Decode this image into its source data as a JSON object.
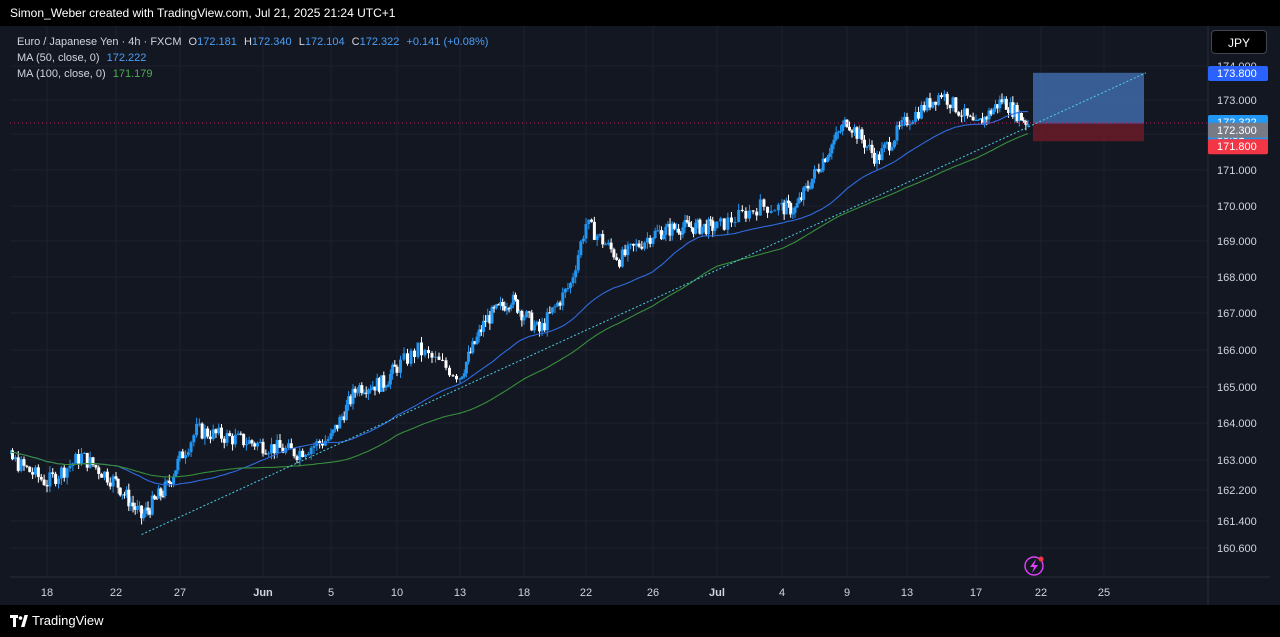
{
  "header": {
    "attribution": "Simon_Weber created with TradingView.com, Jul 21, 2025 21:24 UTC+1"
  },
  "legend": {
    "symbol": "Euro / Japanese Yen · 4h · FXCM",
    "o_label": "O",
    "o_value": "172.181",
    "h_label": "H",
    "h_value": "172.340",
    "l_label": "L",
    "l_value": "172.104",
    "c_label": "C",
    "c_value": "172.322",
    "change": "+0.141 (+0.08%)",
    "ma50_label": "MA (50, close, 0)",
    "ma50_value": "172.222",
    "ma100_label": "MA (100, close, 0)",
    "ma100_value": "171.179"
  },
  "currency_button": "JPY",
  "footer": {
    "brand": "TradingView"
  },
  "colors": {
    "background": "#131722",
    "up": "#2196f3",
    "down": "#ffffff",
    "ma50": "#2962ff",
    "ma100": "#388e3c",
    "trendline": "#4dd0e1",
    "target_zone": "#3f6aa8",
    "stop_zone": "#6a1b28"
  },
  "chart_data": {
    "type": "candlestick",
    "y_axis_ticks": [
      "160.600",
      "161.400",
      "162.200",
      "163.000",
      "164.000",
      "165.000",
      "166.000",
      "167.000",
      "168.000",
      "169.000",
      "170.000",
      "171.000",
      "172.000",
      "173.000",
      "174.000"
    ],
    "x_axis_ticks": [
      "18",
      "22",
      "27",
      "Jun",
      "5",
      "10",
      "13",
      "18",
      "22",
      "26",
      "Jul",
      "4",
      "9",
      "13",
      "17",
      "22",
      "25"
    ],
    "price_labels": [
      {
        "value": "173.800",
        "kind": "target"
      },
      {
        "value": "172.322",
        "kind": "last",
        "countdown": "35:31"
      },
      {
        "value": "172.300",
        "kind": "entry"
      },
      {
        "value": "171.800",
        "kind": "stop"
      }
    ],
    "last_price": 172.322,
    "position": {
      "type": "long",
      "entry": 172.3,
      "target": 173.8,
      "stop": 171.8
    },
    "trendline": {
      "from": {
        "date": "May 24",
        "price": 161.0
      },
      "to": {
        "date": "Jul 27",
        "price": 173.8
      }
    },
    "moving_averages": [
      {
        "label": "MA (50, close, 0)",
        "last": 172.222
      },
      {
        "label": "MA (100, close, 0)",
        "last": 171.179
      }
    ],
    "close_path": [
      [
        "May 14",
        163.5
      ],
      [
        "May 16",
        163.0
      ],
      [
        "May 18",
        162.4
      ],
      [
        "May 20",
        163.1
      ],
      [
        "May 22",
        162.4
      ],
      [
        "May 24",
        161.5
      ],
      [
        "May 26",
        162.3
      ],
      [
        "May 28",
        163.8
      ],
      [
        "May 30",
        163.6
      ],
      [
        "Jun 1",
        163.4
      ],
      [
        "Jun 3",
        163.2
      ],
      [
        "Jun 5",
        163.6
      ],
      [
        "Jun 7",
        165.0
      ],
      [
        "Jun 9",
        165.1
      ],
      [
        "Jun 11",
        166.0
      ],
      [
        "Jun 13",
        165.3
      ],
      [
        "Jun 15",
        166.8
      ],
      [
        "Jun 17",
        167.4
      ],
      [
        "Jun 19",
        166.5
      ],
      [
        "Jun 21",
        167.8
      ],
      [
        "Jun 22",
        169.5
      ],
      [
        "Jun 24",
        168.5
      ],
      [
        "Jun 26",
        169.2
      ],
      [
        "Jun 28",
        169.4
      ],
      [
        "Jul 1",
        169.4
      ],
      [
        "Jul 3",
        170.0
      ],
      [
        "Jul 5",
        169.9
      ],
      [
        "Jul 7",
        171.2
      ],
      [
        "Jul 9",
        172.4
      ],
      [
        "Jul 11",
        171.3
      ],
      [
        "Jul 13",
        172.4
      ],
      [
        "Jul 15",
        173.2
      ],
      [
        "Jul 17",
        172.2
      ],
      [
        "Jul 19",
        173.0
      ],
      [
        "Jul 21",
        172.32
      ]
    ]
  }
}
